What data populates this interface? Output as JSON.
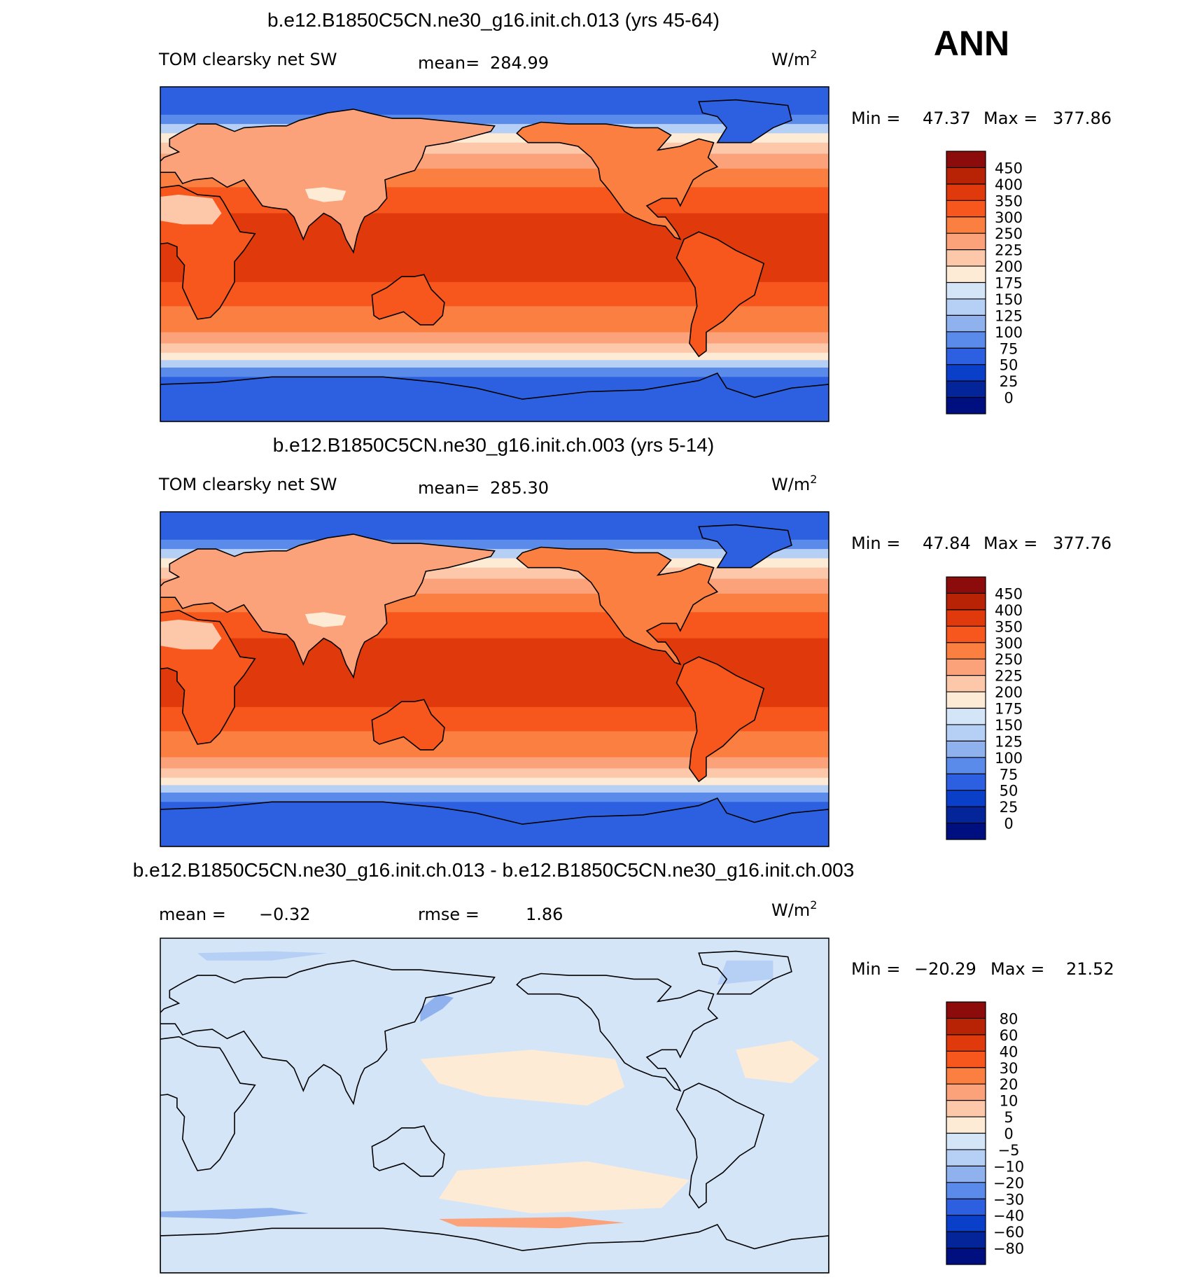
{
  "season": "ANN",
  "units": "W/m",
  "units_sup": "2",
  "chart_data": [
    {
      "type": "heatmap",
      "title": "b.e12.B1850C5CN.ne30_g16.init.ch.013 (yrs 45-64)",
      "left_label": "TOM clearsky net SW",
      "stat1_label": "mean=",
      "stat1_value": "284.99",
      "min_label": "Min =",
      "min_value": "47.37",
      "max_label": "Max =",
      "max_value": "377.86",
      "colorbar_levels": [
        "450",
        "400",
        "350",
        "300",
        "250",
        "225",
        "200",
        "175",
        "150",
        "125",
        "100",
        "75",
        "50",
        "25",
        "0"
      ],
      "colorbar_colors": [
        "#8c0b0b",
        "#b82205",
        "#e03a0c",
        "#f7561c",
        "#fb7f40",
        "#fca27a",
        "#fdc7a9",
        "#feebd6",
        "#d5e5f8",
        "#b6cff5",
        "#8fb2ef",
        "#5b8bea",
        "#2d60e0",
        "#0a3fc9",
        "#04259a",
        "#000f80"
      ],
      "bands": [
        {
          "lat_top": 90,
          "lat_bot": 75,
          "value": 60
        },
        {
          "lat_top": 75,
          "lat_bot": 70,
          "value": 88
        },
        {
          "lat_top": 70,
          "lat_bot": 65,
          "value": 138
        },
        {
          "lat_top": 65,
          "lat_bot": 60,
          "value": 188
        },
        {
          "lat_top": 60,
          "lat_bot": 54,
          "value": 212
        },
        {
          "lat_top": 54,
          "lat_bot": 46,
          "value": 238
        },
        {
          "lat_top": 46,
          "lat_bot": 36,
          "value": 275
        },
        {
          "lat_top": 36,
          "lat_bot": 22,
          "value": 325
        },
        {
          "lat_top": 22,
          "lat_bot": -15,
          "value": 360
        },
        {
          "lat_top": -15,
          "lat_bot": -28,
          "value": 330
        },
        {
          "lat_top": -28,
          "lat_bot": -42,
          "value": 280
        },
        {
          "lat_top": -42,
          "lat_bot": -48,
          "value": 238
        },
        {
          "lat_top": -48,
          "lat_bot": -53,
          "value": 212
        },
        {
          "lat_top": -53,
          "lat_bot": -57,
          "value": 188
        },
        {
          "lat_top": -57,
          "lat_bot": -61,
          "value": 138
        },
        {
          "lat_top": -61,
          "lat_bot": -66,
          "value": 88
        },
        {
          "lat_top": -66,
          "lat_bot": -90,
          "value": 60
        }
      ],
      "land_regions": [
        {
          "name": "Africa",
          "value": 338
        },
        {
          "name": "South America",
          "value": 325
        },
        {
          "name": "Australia",
          "value": 320
        },
        {
          "name": "North America",
          "value": 275
        },
        {
          "name": "Eurasia",
          "value": 240
        },
        {
          "name": "Sahara",
          "value": 212
        },
        {
          "name": "Tibet",
          "value": 190
        },
        {
          "name": "Greenland",
          "value": 62
        },
        {
          "name": "Antarctica",
          "value": 60
        }
      ]
    },
    {
      "type": "heatmap",
      "title": "b.e12.B1850C5CN.ne30_g16.init.ch.003 (yrs 5-14)",
      "left_label": "TOM clearsky net SW",
      "stat1_label": "mean=",
      "stat1_value": "285.30",
      "min_label": "Min =",
      "min_value": "47.84",
      "max_label": "Max =",
      "max_value": "377.76",
      "colorbar_levels": [
        "450",
        "400",
        "350",
        "300",
        "250",
        "225",
        "200",
        "175",
        "150",
        "125",
        "100",
        "75",
        "50",
        "25",
        "0"
      ],
      "colorbar_colors": [
        "#8c0b0b",
        "#b82205",
        "#e03a0c",
        "#f7561c",
        "#fb7f40",
        "#fca27a",
        "#fdc7a9",
        "#feebd6",
        "#d5e5f8",
        "#b6cff5",
        "#8fb2ef",
        "#5b8bea",
        "#2d60e0",
        "#0a3fc9",
        "#04259a",
        "#000f80"
      ],
      "bands": [
        {
          "lat_top": 90,
          "lat_bot": 75,
          "value": 60
        },
        {
          "lat_top": 75,
          "lat_bot": 70,
          "value": 88
        },
        {
          "lat_top": 70,
          "lat_bot": 65,
          "value": 138
        },
        {
          "lat_top": 65,
          "lat_bot": 60,
          "value": 188
        },
        {
          "lat_top": 60,
          "lat_bot": 54,
          "value": 212
        },
        {
          "lat_top": 54,
          "lat_bot": 46,
          "value": 238
        },
        {
          "lat_top": 46,
          "lat_bot": 36,
          "value": 275
        },
        {
          "lat_top": 36,
          "lat_bot": 22,
          "value": 325
        },
        {
          "lat_top": 22,
          "lat_bot": -15,
          "value": 360
        },
        {
          "lat_top": -15,
          "lat_bot": -28,
          "value": 330
        },
        {
          "lat_top": -28,
          "lat_bot": -42,
          "value": 280
        },
        {
          "lat_top": -42,
          "lat_bot": -48,
          "value": 238
        },
        {
          "lat_top": -48,
          "lat_bot": -53,
          "value": 212
        },
        {
          "lat_top": -53,
          "lat_bot": -57,
          "value": 188
        },
        {
          "lat_top": -57,
          "lat_bot": -61,
          "value": 138
        },
        {
          "lat_top": -61,
          "lat_bot": -66,
          "value": 88
        },
        {
          "lat_top": -66,
          "lat_bot": -90,
          "value": 60
        }
      ],
      "land_regions": [
        {
          "name": "Africa",
          "value": 338
        },
        {
          "name": "South America",
          "value": 325
        },
        {
          "name": "Australia",
          "value": 320
        },
        {
          "name": "North America",
          "value": 275
        },
        {
          "name": "Eurasia",
          "value": 240
        },
        {
          "name": "Sahara",
          "value": 212
        },
        {
          "name": "Tibet",
          "value": 190
        },
        {
          "name": "Greenland",
          "value": 62
        },
        {
          "name": "Antarctica",
          "value": 60
        }
      ]
    },
    {
      "type": "heatmap",
      "title": "b.e12.B1850C5CN.ne30_g16.init.ch.013 - b.e12.B1850C5CN.ne30_g16.init.ch.003",
      "left_label": "",
      "stat1_label": "mean =",
      "stat1_value": "−0.32",
      "stat2_label": "rmse =",
      "stat2_value": "1.86",
      "min_label": "Min =",
      "min_value": "−20.29",
      "max_label": "Max =",
      "max_value": "21.52",
      "colorbar_levels": [
        "80",
        "60",
        "40",
        "30",
        "20",
        "10",
        "5",
        "0",
        "−5",
        "−10",
        "−20",
        "−30",
        "−40",
        "−60",
        "−80"
      ],
      "colorbar_colors": [
        "#8c0b0b",
        "#b82205",
        "#e03a0c",
        "#f7561c",
        "#fb7f40",
        "#fca27a",
        "#fdc7a9",
        "#feebd6",
        "#d5e5f8",
        "#b6cff5",
        "#8fb2ef",
        "#5b8bea",
        "#2d60e0",
        "#0a3fc9",
        "#04259a",
        "#000f80"
      ],
      "background_value": -2,
      "patches": [
        {
          "name": "central Pacific",
          "value": 2
        },
        {
          "name": "south Pacific",
          "value": 2
        },
        {
          "name": "north Atlantic",
          "value": 2
        },
        {
          "name": "southern ocean east",
          "value": 12
        },
        {
          "name": "southern ocean west",
          "value": -12
        },
        {
          "name": "Greenland",
          "value": -8
        },
        {
          "name": "Arctic",
          "value": -8
        },
        {
          "name": "Kamchatka",
          "value": -12
        }
      ]
    }
  ]
}
